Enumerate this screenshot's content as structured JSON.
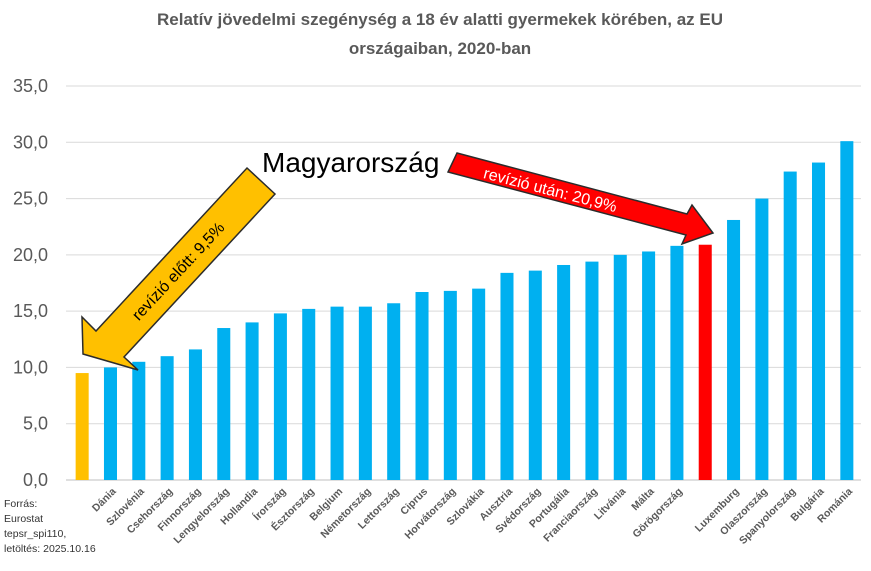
{
  "chart_data": {
    "type": "bar",
    "title_lines": [
      "Relatív jövedelmi szegénység a 18 év alatti gyermekek körében, az EU",
      "országaiban,  2020-ban"
    ],
    "categories": [
      "",
      "Dánia",
      "Szlovénia",
      "Csehország",
      "Finnország",
      "Lengyelország",
      "Hollandia",
      "Írország",
      "Észtország",
      "Belgium",
      "Németország",
      "Lettország",
      "Ciprus",
      "Horvátország",
      "Szlovákia",
      "Ausztria",
      "Svédország",
      "Portugália",
      "Franciaország",
      "Litvánia",
      "Málta",
      "Görögország",
      "",
      "Luxemburg",
      "Olaszország",
      "Spanyolország",
      "Bulgária",
      "Románia"
    ],
    "values": [
      9.5,
      10.0,
      10.5,
      11.0,
      11.6,
      13.5,
      14.0,
      14.8,
      15.2,
      15.4,
      15.4,
      15.7,
      16.7,
      16.8,
      17.0,
      18.4,
      18.6,
      19.1,
      19.4,
      20.0,
      20.3,
      20.8,
      20.9,
      23.1,
      25.0,
      27.4,
      28.2,
      30.1
    ],
    "highlight": {
      "0": "#FFC000",
      "22": "#FF0000"
    },
    "bar_color": "#00B0F0",
    "ylim": [
      0,
      35
    ],
    "yticks": [
      "0,0",
      "5,0",
      "10,0",
      "15,0",
      "20,0",
      "25,0",
      "30,0",
      "35,0"
    ],
    "grid": true
  },
  "annotations": {
    "hungary": "Magyarország",
    "before": "revízió előtt: 9,5%",
    "after": "revízió után: 20,9%"
  },
  "colors": {
    "before_arrow": "#FFC000",
    "after_arrow": "#FF0000"
  },
  "source": {
    "line1": "Forrás:",
    "line2": "Eurostat",
    "line3": "tepsr_spi110,",
    "line4": " letöltés: 2025.10.16"
  }
}
